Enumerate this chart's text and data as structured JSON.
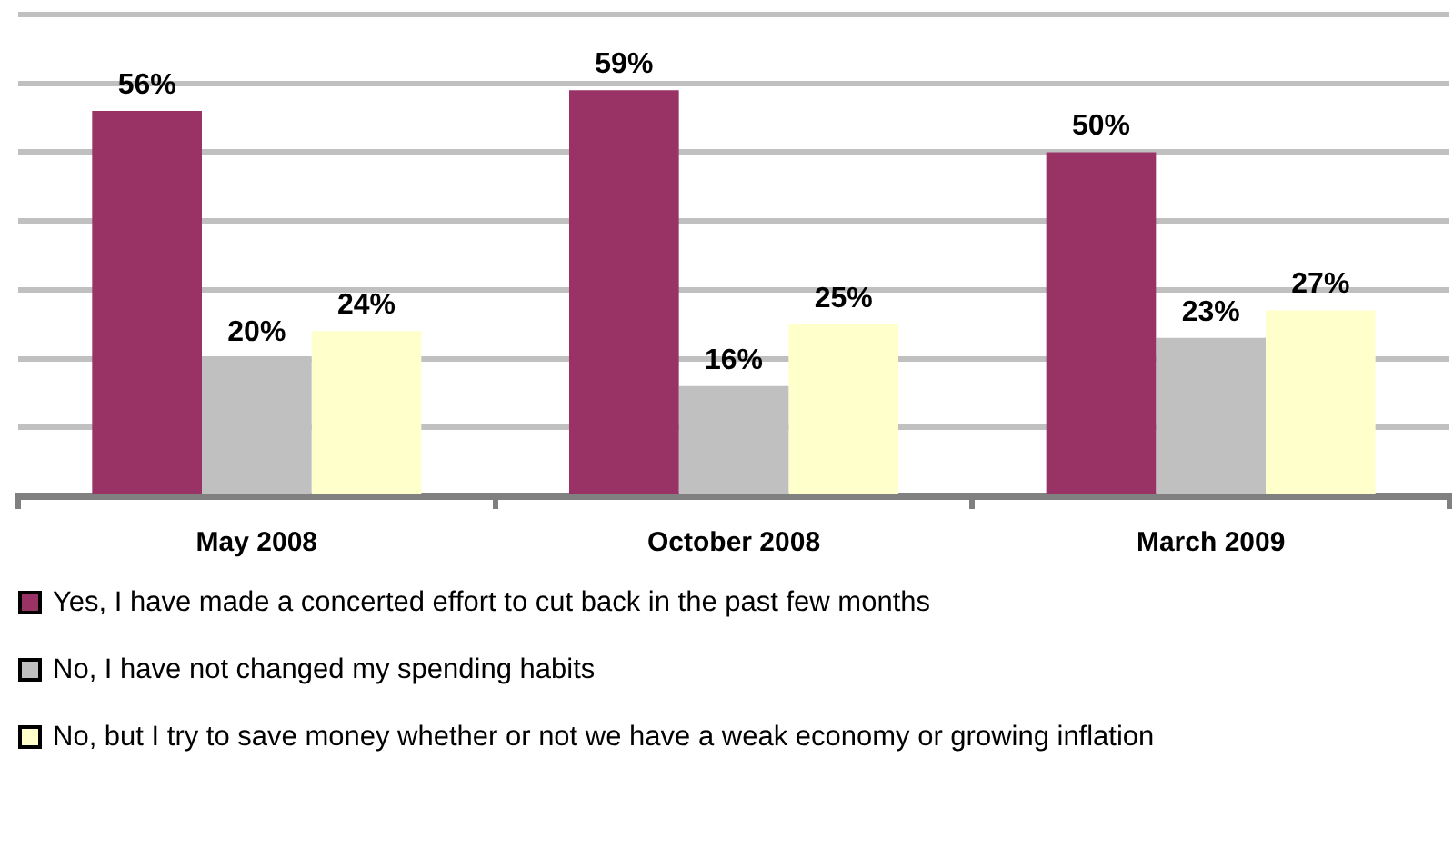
{
  "chart_data": {
    "type": "bar",
    "categories": [
      "May 2008",
      "October 2008",
      "March 2009"
    ],
    "series": [
      {
        "name": "Yes, I have made a concerted effort to cut back in the past few months",
        "color": "#993366",
        "values": [
          56,
          59,
          50
        ],
        "value_labels": [
          "56%",
          "59%",
          "50%"
        ]
      },
      {
        "name": "No, I have not changed my spending habits",
        "color": "#c0c0c0",
        "values": [
          20,
          16,
          23
        ],
        "value_labels": [
          "20%",
          "16%",
          "23%"
        ]
      },
      {
        "name": "No, but I try to save money whether or not we have a weak economy or growing inflation",
        "color": "#ffffcc",
        "values": [
          24,
          25,
          27
        ],
        "value_labels": [
          "24%",
          "25%",
          "27%"
        ]
      }
    ],
    "tick_labels": "x",
    "grid": "y",
    "legend": "bottom"
  }
}
